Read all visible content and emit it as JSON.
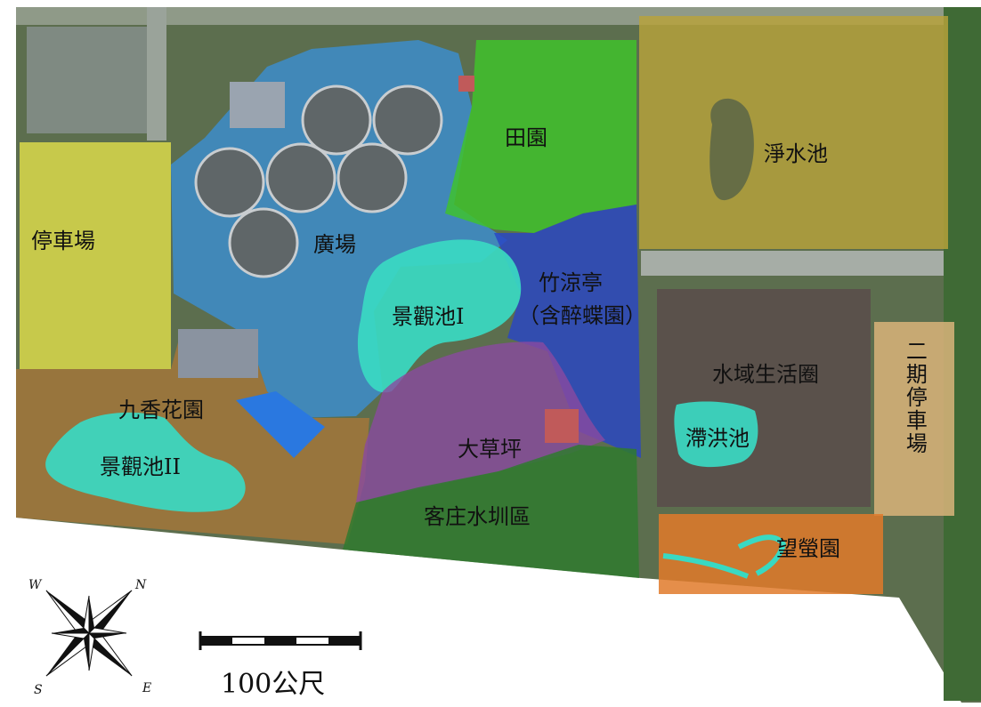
{
  "map": {
    "zones": [
      {
        "id": "parking",
        "label": "停車場"
      },
      {
        "id": "plaza",
        "label": "廣場"
      },
      {
        "id": "fields",
        "label": "田園"
      },
      {
        "id": "purification-pond",
        "label": "淨水池"
      },
      {
        "id": "landscape-pond-1",
        "label": "景觀池I"
      },
      {
        "id": "bamboo-pavilion",
        "label": "竹涼亭"
      },
      {
        "id": "bamboo-pavilion-sub",
        "label": "（含醉蝶園）"
      },
      {
        "id": "nine-fragrance-garden",
        "label": "九香花園"
      },
      {
        "id": "landscape-pond-2",
        "label": "景觀池II"
      },
      {
        "id": "big-lawn",
        "label": "大草坪"
      },
      {
        "id": "hakka-canal",
        "label": "客庄水圳區"
      },
      {
        "id": "waterfront-life",
        "label": "水域生活圈"
      },
      {
        "id": "detention-pond",
        "label": "滯洪池"
      },
      {
        "id": "phase2-parking",
        "label": "二期停車場"
      },
      {
        "id": "firefly-garden",
        "label": "望螢園"
      }
    ],
    "scale_bar": {
      "label": "100公尺"
    },
    "compass": {
      "n": "N",
      "s": "S",
      "e": "E",
      "w": "W"
    }
  },
  "colors": {
    "parking": "#e6e34a",
    "plaza": "#3a8fd6",
    "fields": "#3fc42a",
    "purification": "#b8a23a",
    "pond_cyan": "#39d9c2",
    "bamboo": "#2a45c4",
    "nine_fragrance": "#a8773a",
    "lawn": "#8a4aa0",
    "hakka": "#2f7a2f",
    "waterfront": "#5a4a4a",
    "phase2": "#d9b47a",
    "firefly": "#e07a2a",
    "ground": "#6b7a5a"
  }
}
